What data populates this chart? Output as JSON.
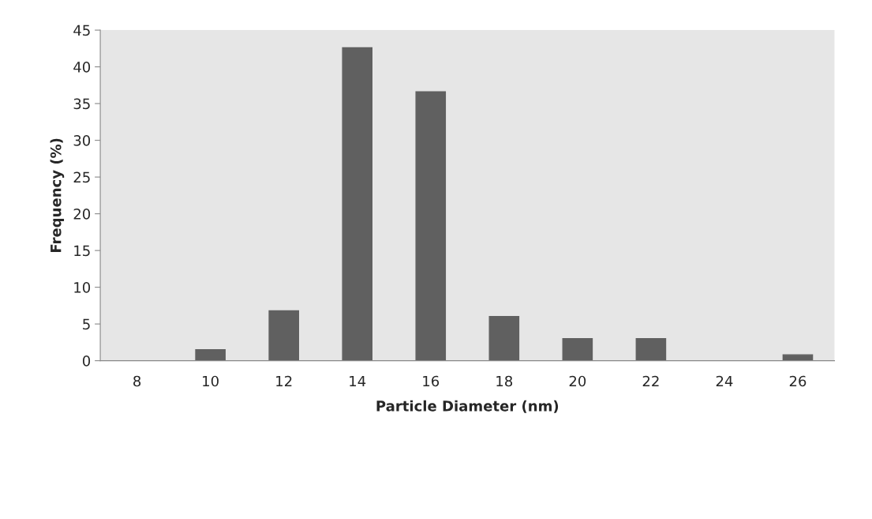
{
  "chart_data": {
    "type": "bar",
    "xlabel": "Particle Diameter (nm)",
    "ylabel": "Frequency (%)",
    "categories": [
      "8",
      "10",
      "12",
      "14",
      "16",
      "18",
      "20",
      "22",
      "24",
      "26"
    ],
    "values": [
      0,
      1.5,
      6.8,
      42.6,
      36.6,
      6.0,
      3.0,
      3.0,
      0,
      0.8
    ],
    "color": "#606060",
    "ylim": [
      0,
      45
    ],
    "yticks": [
      0,
      5,
      10,
      15,
      20,
      25,
      30,
      35,
      40,
      45
    ],
    "grid": false,
    "legend": false
  }
}
